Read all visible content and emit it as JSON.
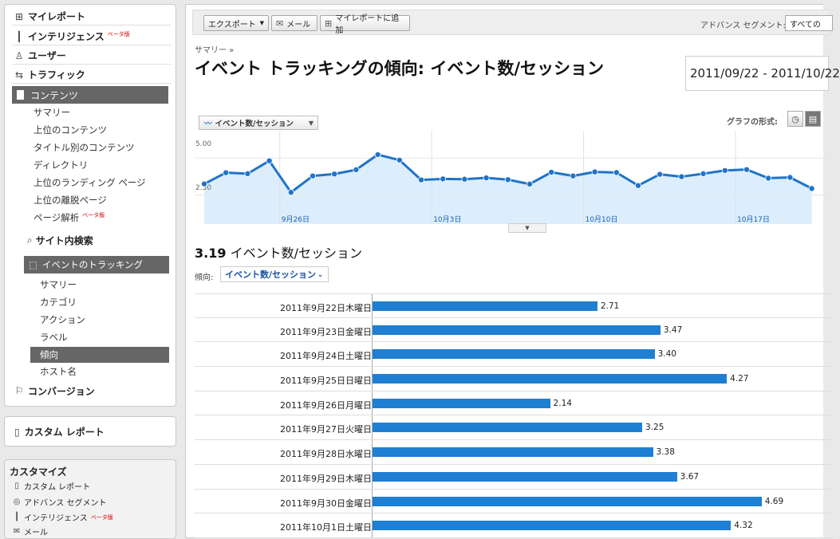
{
  "sidebar": {
    "top_items": [
      {
        "label": "マイレポート",
        "icon": "grid-icon"
      },
      {
        "label": "インテリジェンス",
        "icon": "bar-chart-icon",
        "beta": "ベータ版"
      },
      {
        "label": "ユーザー",
        "icon": "user-icon"
      },
      {
        "label": "トラフィック",
        "icon": "traffic-icon"
      }
    ],
    "content_label": "コンテンツ",
    "content_items": [
      "サマリー",
      "上位のコンテンツ",
      "タイトル別のコンテンツ",
      "ディレクトリ",
      "上位のランディング ページ",
      "上位の離脱ページ",
      "ページ解析"
    ],
    "page_analysis_beta": "ベータ版",
    "site_search_label": "サイト内検索",
    "event_tracking_label": "イベントのトラッキング",
    "event_items": [
      "サマリー",
      "カテゴリ",
      "アクション",
      "ラベル",
      "傾向",
      "ホスト名"
    ],
    "selected_event_item": "傾向",
    "conversion_label": "コンバージョン",
    "custom_report_label": "カスタム レポート",
    "customize": {
      "title": "カスタマイズ",
      "items": [
        {
          "label": "カスタム レポート",
          "icon": "report-icon"
        },
        {
          "label": "アドバンス セグメント",
          "icon": "segment-icon"
        },
        {
          "label": "インテリジェンス",
          "icon": "bar-chart-icon",
          "beta": "ベータ版"
        },
        {
          "label": "メール",
          "icon": "mail-icon"
        }
      ]
    }
  },
  "toolbar": {
    "export_label": "エクスポート",
    "mail_label": "メール",
    "add_report_label": "マイレポートに追加",
    "advanced_segment_label": "アドバンス セグメント:",
    "segment_value": "すべての"
  },
  "breadcrumb": "サマリー »",
  "page_title": "イベント トラッキングの傾向: イベント数/セッション",
  "date_range": "2011/09/22 - 2011/10/22",
  "graph_type_label": "グラフの形式:",
  "metric_tab_label": "イベント数/セッション",
  "summary": {
    "value": "3.19",
    "label": "イベント数/セッション"
  },
  "trend": {
    "label": "傾向:",
    "value": "イベント数/セッション"
  },
  "colors": {
    "bar": "#1f7fd2",
    "line": "#1f74c8",
    "area": "#dceefb",
    "active_nav": "#666666"
  },
  "chart_data": {
    "type": "line",
    "y_ticks": [
      "5.00",
      "2.50"
    ],
    "x_labels": [
      "9月26日",
      "10月3日",
      "10月10日",
      "10月17日"
    ],
    "ylim": [
      0,
      6.3
    ],
    "values": [
      2.71,
      3.47,
      3.4,
      4.27,
      2.14,
      3.25,
      3.38,
      3.67,
      4.69,
      4.32,
      2.98,
      3.05,
      3.03,
      3.12,
      3.0,
      2.7,
      3.5,
      3.25,
      3.52,
      3.48,
      2.6,
      3.36,
      3.2,
      3.4,
      3.62,
      3.68,
      3.1,
      3.15,
      2.4
    ]
  },
  "table": [
    {
      "date": "2011年9月22日木曜日",
      "value": 2.71,
      "label": "2.71"
    },
    {
      "date": "2011年9月23日金曜日",
      "value": 3.47,
      "label": "3.47"
    },
    {
      "date": "2011年9月24日土曜日",
      "value": 3.4,
      "label": "3.40"
    },
    {
      "date": "2011年9月25日日曜日",
      "value": 4.27,
      "label": "4.27"
    },
    {
      "date": "2011年9月26日月曜日",
      "value": 2.14,
      "label": "2.14"
    },
    {
      "date": "2011年9月27日火曜日",
      "value": 3.25,
      "label": "3.25"
    },
    {
      "date": "2011年9月28日水曜日",
      "value": 3.38,
      "label": "3.38"
    },
    {
      "date": "2011年9月29日木曜日",
      "value": 3.67,
      "label": "3.67"
    },
    {
      "date": "2011年9月30日金曜日",
      "value": 4.69,
      "label": "4.69"
    },
    {
      "date": "2011年10月1日土曜日",
      "value": 4.32,
      "label": "4.32"
    }
  ]
}
